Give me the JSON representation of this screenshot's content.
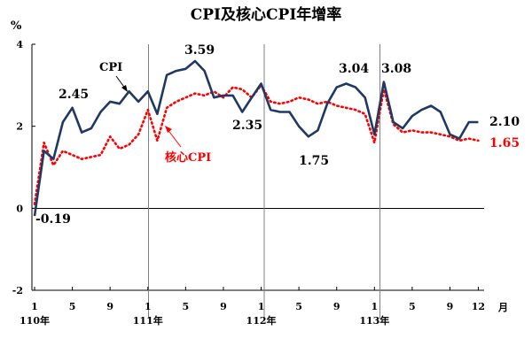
{
  "chart_data": {
    "type": "line",
    "title": "CPI及核心CPI年增率",
    "ylabel": "%",
    "xunit": "月",
    "ylim": [
      -2,
      4
    ],
    "yticks": [
      "4",
      "2",
      "0",
      "-2"
    ],
    "xtick_labels": [
      "1",
      "5",
      "9",
      "1",
      "5",
      "9",
      "1",
      "5",
      "9",
      "1",
      "5",
      "9",
      "12"
    ],
    "year_labels": [
      "110年",
      "111年",
      "112年",
      "113年"
    ],
    "grid": false,
    "x_count": 48,
    "series": [
      {
        "name": "CPI",
        "color": "#1f3864",
        "values": [
          -0.19,
          1.4,
          1.2,
          2.1,
          2.45,
          1.85,
          1.95,
          2.35,
          2.6,
          2.55,
          2.85,
          2.6,
          2.85,
          2.3,
          3.25,
          3.35,
          3.4,
          3.59,
          3.35,
          2.7,
          2.75,
          2.75,
          2.35,
          2.7,
          3.04,
          2.4,
          2.35,
          2.35,
          2.0,
          1.75,
          1.9,
          2.55,
          2.95,
          3.04,
          2.95,
          2.7,
          1.8,
          3.08,
          2.1,
          1.95,
          2.25,
          2.4,
          2.5,
          2.35,
          1.8,
          1.7,
          2.1,
          2.1
        ]
      },
      {
        "name": "核心CPI",
        "color": "#ff0000",
        "values": [
          0.1,
          1.6,
          1.05,
          1.4,
          1.3,
          1.2,
          1.25,
          1.3,
          1.75,
          1.45,
          1.55,
          1.8,
          2.4,
          1.65,
          2.45,
          2.6,
          2.7,
          2.8,
          2.75,
          2.85,
          2.7,
          2.95,
          2.9,
          2.7,
          3.0,
          2.6,
          2.55,
          2.6,
          2.7,
          2.65,
          2.55,
          2.6,
          2.5,
          2.45,
          2.4,
          2.3,
          1.6,
          2.9,
          2.05,
          1.85,
          1.9,
          1.85,
          1.85,
          1.8,
          1.75,
          1.65,
          1.7,
          1.65
        ]
      }
    ],
    "annotations": [
      {
        "text": "-0.19",
        "x": 0,
        "y": -0.19
      },
      {
        "text": "2.45",
        "x": 4,
        "y": 2.45
      },
      {
        "text": "3.59",
        "x": 17,
        "y": 3.59
      },
      {
        "text": "2.35",
        "x": 22,
        "y": 2.35
      },
      {
        "text": "1.75",
        "x": 29,
        "y": 1.75
      },
      {
        "text": "3.04",
        "x": 33,
        "y": 3.04
      },
      {
        "text": "3.08",
        "x": 37,
        "y": 3.08
      },
      {
        "text": "2.10",
        "x": 47,
        "y": 2.1
      },
      {
        "text": "1.65",
        "x": 47,
        "y": 1.65
      }
    ],
    "legend_labels": [
      "CPI",
      "核心CPI"
    ]
  }
}
